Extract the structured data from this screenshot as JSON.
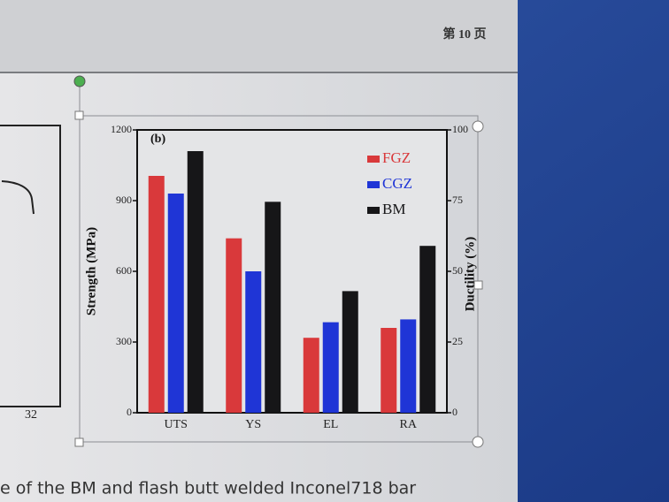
{
  "header": {
    "page_label": "第 10 页"
  },
  "left_figure": {
    "tick": "32"
  },
  "caption": "e of the BM and flash butt welded Inconel718 bar",
  "chart_data": {
    "type": "bar",
    "panel_label": "(b)",
    "y_label": "Strength (MPa)",
    "y2_label": "Ductility (%)",
    "categories": [
      "UTS",
      "YS",
      "EL",
      "RA"
    ],
    "category_axes": [
      "y",
      "y",
      "y2",
      "y2"
    ],
    "series": [
      {
        "name": "FGZ",
        "color": "#d9393b",
        "values": [
          1005,
          740,
          26.5,
          30
        ]
      },
      {
        "name": "CGZ",
        "color": "#1f35d6",
        "values": [
          930,
          600,
          32,
          33
        ]
      },
      {
        "name": "BM",
        "color": "#161618",
        "values": [
          1110,
          895,
          43,
          59
        ]
      }
    ],
    "ylim": [
      0,
      1200
    ],
    "yticks": [
      0,
      300,
      600,
      900,
      1200
    ],
    "y2lim": [
      0,
      100
    ],
    "y2ticks": [
      0,
      25,
      50,
      75,
      100
    ],
    "legend": "upper right",
    "grid": false
  }
}
